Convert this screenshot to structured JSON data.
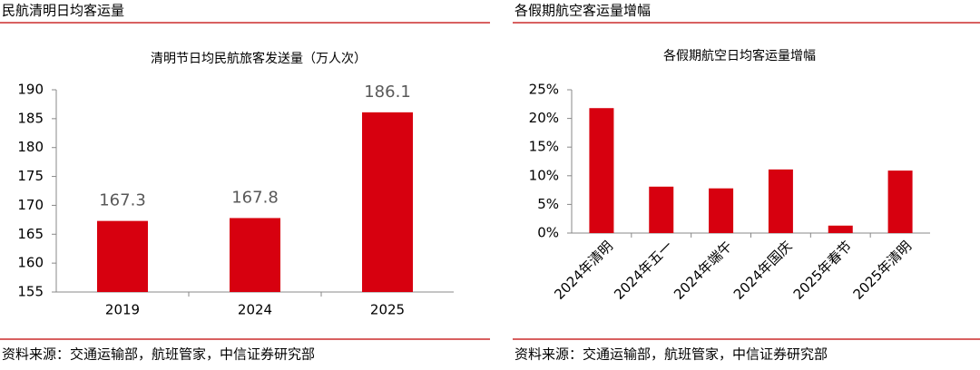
{
  "chart_data": [
    {
      "type": "bar",
      "panel_title": "民航清明日均客运量",
      "title": "清明节日均民航旅客发送量（万人次）",
      "categories": [
        "2019",
        "2024",
        "2025"
      ],
      "values": [
        167.3,
        167.8,
        186.1
      ],
      "color": "#d7000f",
      "ylim": [
        155,
        190
      ],
      "yticks": [
        155,
        160,
        165,
        170,
        175,
        180,
        185,
        190
      ],
      "source": "资料来源：交通运输部，航班管家，中信证券研究部"
    },
    {
      "type": "bar",
      "panel_title": "各假期航空客运量增幅",
      "title": "各假期航空日均客运量增幅",
      "categories": [
        "2024年清明",
        "2024年五一",
        "2024年端午",
        "2024年国庆",
        "2025年春节",
        "2025年清明"
      ],
      "values": [
        21.8,
        8.1,
        7.8,
        11.1,
        1.3,
        10.9
      ],
      "color": "#d7000f",
      "ylim": [
        0,
        25
      ],
      "yticks": [
        {
          "value": 0,
          "label": "0%"
        },
        {
          "value": 5,
          "label": "5%"
        },
        {
          "value": 10,
          "label": "10%"
        },
        {
          "value": 15,
          "label": "15%"
        },
        {
          "value": 20,
          "label": "20%"
        },
        {
          "value": 25,
          "label": "25%"
        }
      ],
      "source": "资料来源：交通运输部，航班管家，中信证券研究部"
    }
  ]
}
